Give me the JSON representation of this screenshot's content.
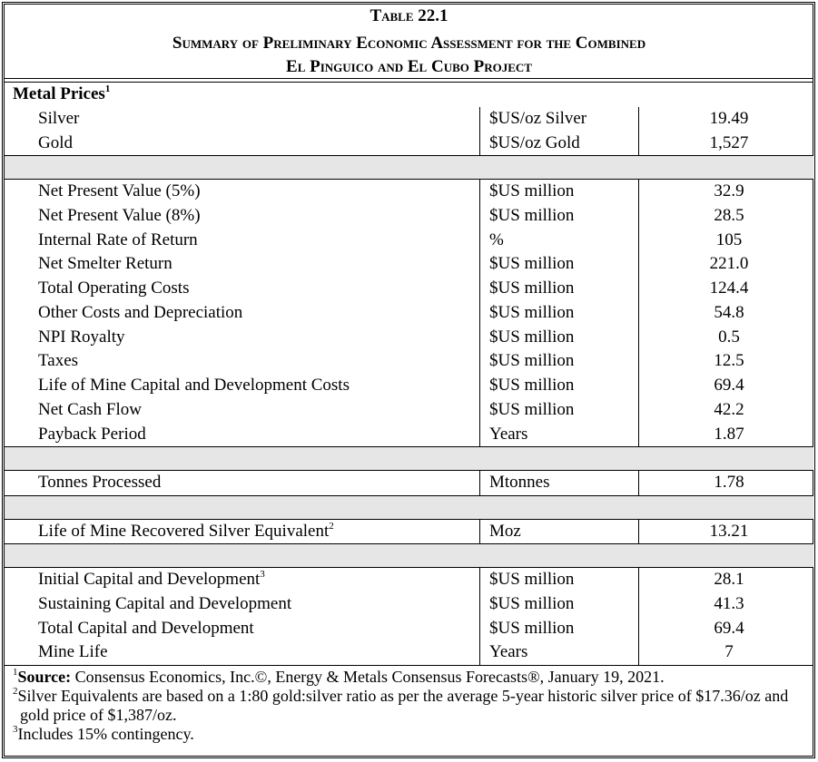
{
  "header": {
    "title": "Table 22.1",
    "subtitle_lines": [
      "Summary of Preliminary Economic Assessment for the Combined",
      "El Pinguico and El Cubo Project"
    ]
  },
  "table": {
    "sections": [
      {
        "heading": "Metal Prices",
        "heading_note": "1",
        "rows": [
          {
            "label": "Silver",
            "unit": "$US/oz Silver",
            "value": "19.49"
          },
          {
            "label": "Gold",
            "unit": "$US/oz Gold",
            "value": "1,527"
          }
        ]
      },
      {
        "rows": [
          {
            "label": "Net Present Value (5%)",
            "unit": "$US million",
            "value": "32.9"
          },
          {
            "label": "Net Present Value (8%)",
            "unit": "$US million",
            "value": "28.5"
          },
          {
            "label": "Internal Rate of Return",
            "unit": "%",
            "value": "105"
          },
          {
            "label": "Net Smelter Return",
            "unit": "$US million",
            "value": "221.0"
          },
          {
            "label": "Total Operating Costs",
            "unit": "$US million",
            "value": "124.4"
          },
          {
            "label": "Other Costs and Depreciation",
            "unit": "$US million",
            "value": "54.8"
          },
          {
            "label": "NPI Royalty",
            "unit": "$US million",
            "value": "0.5"
          },
          {
            "label": "Taxes",
            "unit": "$US million",
            "value": "12.5"
          },
          {
            "label": "Life of Mine Capital and Development Costs",
            "unit": "$US million",
            "value": "69.4"
          },
          {
            "label": "Net Cash Flow",
            "unit": "$US million",
            "value": "42.2"
          },
          {
            "label": "Payback Period",
            "unit": "Years",
            "value": "1.87"
          }
        ]
      },
      {
        "rows": [
          {
            "label": "Tonnes Processed",
            "unit": "Mtonnes",
            "value": "1.78"
          }
        ]
      },
      {
        "rows": [
          {
            "label": "Life of Mine Recovered Silver Equivalent",
            "note": "2",
            "unit": "Moz",
            "value": "13.21"
          }
        ]
      },
      {
        "rows": [
          {
            "label": "Initial Capital and Development",
            "note": "3",
            "unit": "$US million",
            "value": "28.1"
          },
          {
            "label": "Sustaining Capital and Development",
            "unit": "$US million",
            "value": "41.3"
          },
          {
            "label": "Total Capital and Development",
            "unit": "$US million",
            "value": "69.4"
          },
          {
            "label": "Mine Life",
            "unit": "Years",
            "value": "7"
          }
        ]
      }
    ]
  },
  "footnotes": [
    {
      "mark": "1",
      "lead": "Source:",
      "text": " Consensus Economics, Inc.©, Energy & Metals Consensus Forecasts®, January 19, 2021."
    },
    {
      "mark": "2",
      "text": "Silver Equivalents are based on a 1:80 gold:silver ratio as per the average 5-year historic silver price of $17.36/oz and gold price of $1,387/oz."
    },
    {
      "mark": "3",
      "text": "Includes 15% contingency."
    }
  ]
}
